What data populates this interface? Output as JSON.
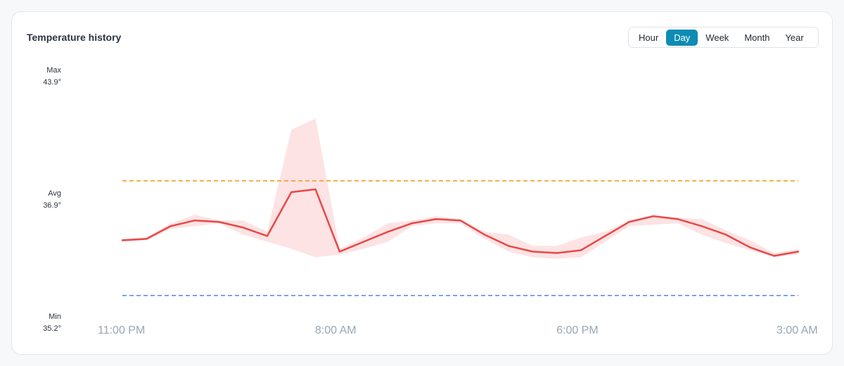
{
  "card": {
    "title": "Temperature history"
  },
  "range_selector": {
    "options": [
      "Hour",
      "Day",
      "Week",
      "Month",
      "Year"
    ],
    "selected": "Day"
  },
  "y_labels": {
    "max_label": "Max",
    "max_value": "43.9°",
    "avg_label": "Avg",
    "avg_value": "36.9°",
    "min_label": "Min",
    "min_value": "35.2°"
  },
  "chart_data": {
    "type": "line",
    "ylim": [
      35.2,
      43.9
    ],
    "x_tick_labels": [
      "11:00 PM",
      "8:00 AM",
      "6:00 PM",
      "3:00 AM"
    ],
    "x_tick_index": [
      0,
      9,
      19,
      28
    ],
    "thresholds": [
      {
        "kind": "upper",
        "value": 40.0,
        "color": "#f0a020"
      },
      {
        "kind": "lower",
        "value": 35.95,
        "color": "#5b8fe8"
      }
    ],
    "series": [
      {
        "kind": "line",
        "color": "#e84848",
        "values": [
          37.9,
          37.95,
          38.4,
          38.6,
          38.55,
          38.35,
          38.05,
          39.6,
          39.7,
          37.5,
          37.85,
          38.2,
          38.5,
          38.65,
          38.6,
          38.1,
          37.7,
          37.5,
          37.45,
          37.55,
          38.05,
          38.55,
          38.75,
          38.65,
          38.4,
          38.1,
          37.65,
          37.35,
          37.5
        ]
      },
      {
        "kind": "band_upper",
        "color": "#fde3e3",
        "values": [
          37.95,
          38.0,
          38.5,
          38.8,
          38.6,
          38.6,
          38.2,
          41.8,
          42.2,
          37.6,
          38.0,
          38.5,
          38.6,
          38.75,
          38.65,
          38.2,
          38.1,
          37.7,
          37.7,
          38.0,
          38.2,
          38.6,
          38.8,
          38.7,
          38.65,
          38.25,
          37.9,
          37.45,
          37.6
        ]
      },
      {
        "kind": "band_lower",
        "color": "#fde3e3",
        "values": [
          37.85,
          37.9,
          38.3,
          38.4,
          38.5,
          38.1,
          37.85,
          37.6,
          37.3,
          37.4,
          37.6,
          37.85,
          38.4,
          38.5,
          38.5,
          37.95,
          37.5,
          37.3,
          37.25,
          37.3,
          37.85,
          38.4,
          38.45,
          38.5,
          38.1,
          37.8,
          37.55,
          37.3,
          37.4
        ]
      }
    ]
  },
  "colors": {
    "accent": "#0e8cb3",
    "line": "#e84848",
    "band": "#fde3e3",
    "upper_threshold": "#f0a020",
    "lower_threshold": "#5b8fe8"
  }
}
